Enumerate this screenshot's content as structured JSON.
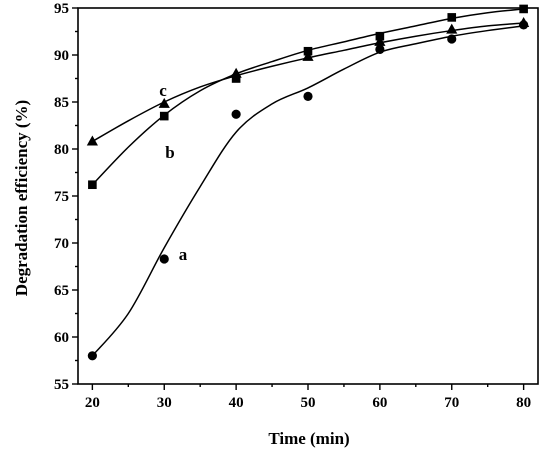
{
  "chart_data": {
    "type": "line",
    "xlabel": "Time (min)",
    "ylabel": "Degradation efficiency (%)",
    "xlim": [
      18,
      82
    ],
    "ylim": [
      55,
      95
    ],
    "xticks": [
      20,
      30,
      40,
      50,
      60,
      70,
      80
    ],
    "yticks": [
      55,
      60,
      65,
      70,
      75,
      80,
      85,
      90,
      95
    ],
    "x": [
      20,
      30,
      40,
      50,
      60,
      70,
      80
    ],
    "series": [
      {
        "name": "a",
        "marker": "circle",
        "values": [
          58.0,
          68.3,
          83.7,
          85.6,
          90.6,
          91.7,
          93.2
        ],
        "fit": [
          [
            20,
            58.0
          ],
          [
            25,
            62.5
          ],
          [
            30,
            69.5
          ],
          [
            35,
            76.0
          ],
          [
            40,
            81.8
          ],
          [
            45,
            84.8
          ],
          [
            50,
            86.5
          ],
          [
            55,
            88.5
          ],
          [
            60,
            90.3
          ],
          [
            65,
            91.2
          ],
          [
            70,
            92.0
          ],
          [
            75,
            92.6
          ],
          [
            80,
            93.1
          ]
        ]
      },
      {
        "name": "b",
        "marker": "square",
        "values": [
          76.2,
          83.5,
          87.5,
          90.4,
          92.0,
          94.0,
          94.9
        ],
        "fit": [
          [
            20,
            76.2
          ],
          [
            25,
            80.2
          ],
          [
            30,
            83.6
          ],
          [
            35,
            86.2
          ],
          [
            40,
            88.0
          ],
          [
            45,
            89.3
          ],
          [
            50,
            90.5
          ],
          [
            55,
            91.4
          ],
          [
            60,
            92.3
          ],
          [
            65,
            93.1
          ],
          [
            70,
            93.9
          ],
          [
            75,
            94.5
          ],
          [
            80,
            94.9
          ]
        ]
      },
      {
        "name": "c",
        "marker": "triangle",
        "values": [
          80.8,
          84.8,
          88.0,
          89.8,
          91.4,
          92.7,
          93.4
        ],
        "fit": [
          [
            20,
            80.8
          ],
          [
            25,
            83.0
          ],
          [
            30,
            85.0
          ],
          [
            35,
            86.6
          ],
          [
            40,
            87.8
          ],
          [
            45,
            88.8
          ],
          [
            50,
            89.7
          ],
          [
            55,
            90.5
          ],
          [
            60,
            91.3
          ],
          [
            65,
            92.0
          ],
          [
            70,
            92.6
          ],
          [
            75,
            93.1
          ],
          [
            80,
            93.4
          ]
        ]
      }
    ]
  }
}
